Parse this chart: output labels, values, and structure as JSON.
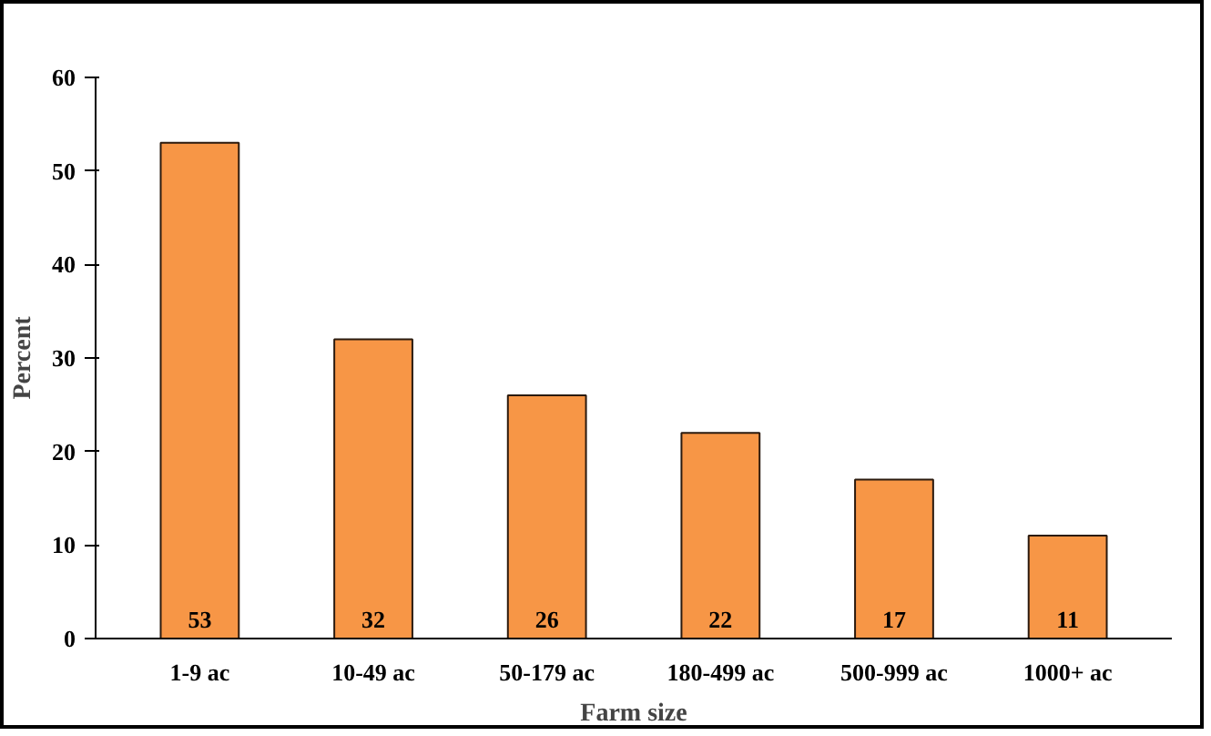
{
  "chart_data": {
    "type": "bar",
    "xlabel": "Farm size",
    "ylabel": "Percent",
    "categories": [
      "1-9 ac",
      "10-49 ac",
      "50-179 ac",
      "180-499 ac",
      "500-999 ac",
      "1000+ ac"
    ],
    "values": [
      53,
      32,
      26,
      22,
      17,
      11
    ],
    "color": "#f79646",
    "ylim": [
      0,
      60
    ],
    "yticks": [
      0,
      10,
      20,
      30,
      40,
      50,
      60
    ],
    "grid": false,
    "data_labels": true
  }
}
